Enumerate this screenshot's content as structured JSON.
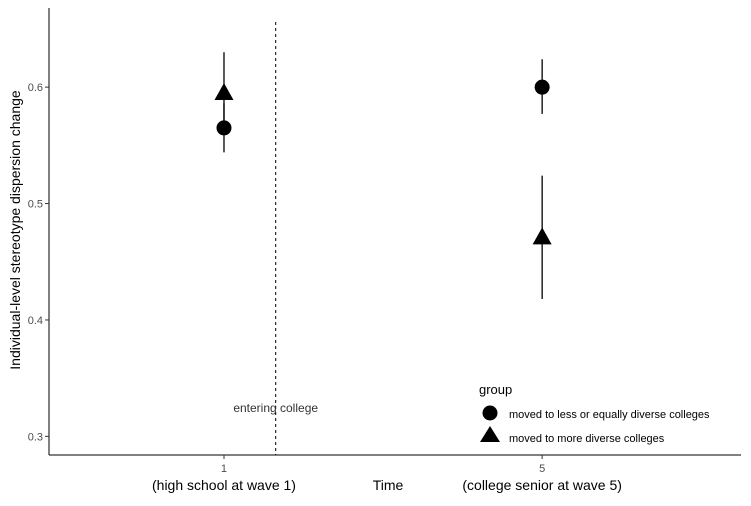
{
  "chart_data": {
    "type": "scatter",
    "title": "",
    "xlabel": "Time",
    "ylabel": "Individual-level stereotype dispersion change",
    "x_ticks": [
      {
        "x": 1,
        "label": "1",
        "sublabel": "(high school at wave 1)"
      },
      {
        "x": 5,
        "label": "5",
        "sublabel": "(college senior at wave 5)"
      }
    ],
    "xlim": [
      -1.2,
      7.5
    ],
    "ylim": [
      0.284,
      0.668
    ],
    "y_ticks": [
      0.3,
      0.4,
      0.5,
      0.6
    ],
    "y_tick_labels": [
      "0.3",
      "0.4",
      "0.5",
      "0.6"
    ],
    "grid": false,
    "vline": {
      "x": 1.65,
      "label": "entering college",
      "label_y": 0.321
    },
    "legend": {
      "title": "group",
      "position": "bottom-right"
    },
    "series": [
      {
        "name": "moved to less or equally diverse colleges",
        "marker": "circle",
        "points": [
          {
            "x": 1,
            "y": 0.565,
            "lo": 0.544,
            "hi": 0.586
          },
          {
            "x": 5,
            "y": 0.6,
            "lo": 0.577,
            "hi": 0.624
          }
        ]
      },
      {
        "name": "moved to more diverse colleges",
        "marker": "triangle",
        "points": [
          {
            "x": 1,
            "y": 0.595,
            "lo": 0.56,
            "hi": 0.63
          },
          {
            "x": 5,
            "y": 0.471,
            "lo": 0.418,
            "hi": 0.524
          }
        ]
      }
    ]
  }
}
